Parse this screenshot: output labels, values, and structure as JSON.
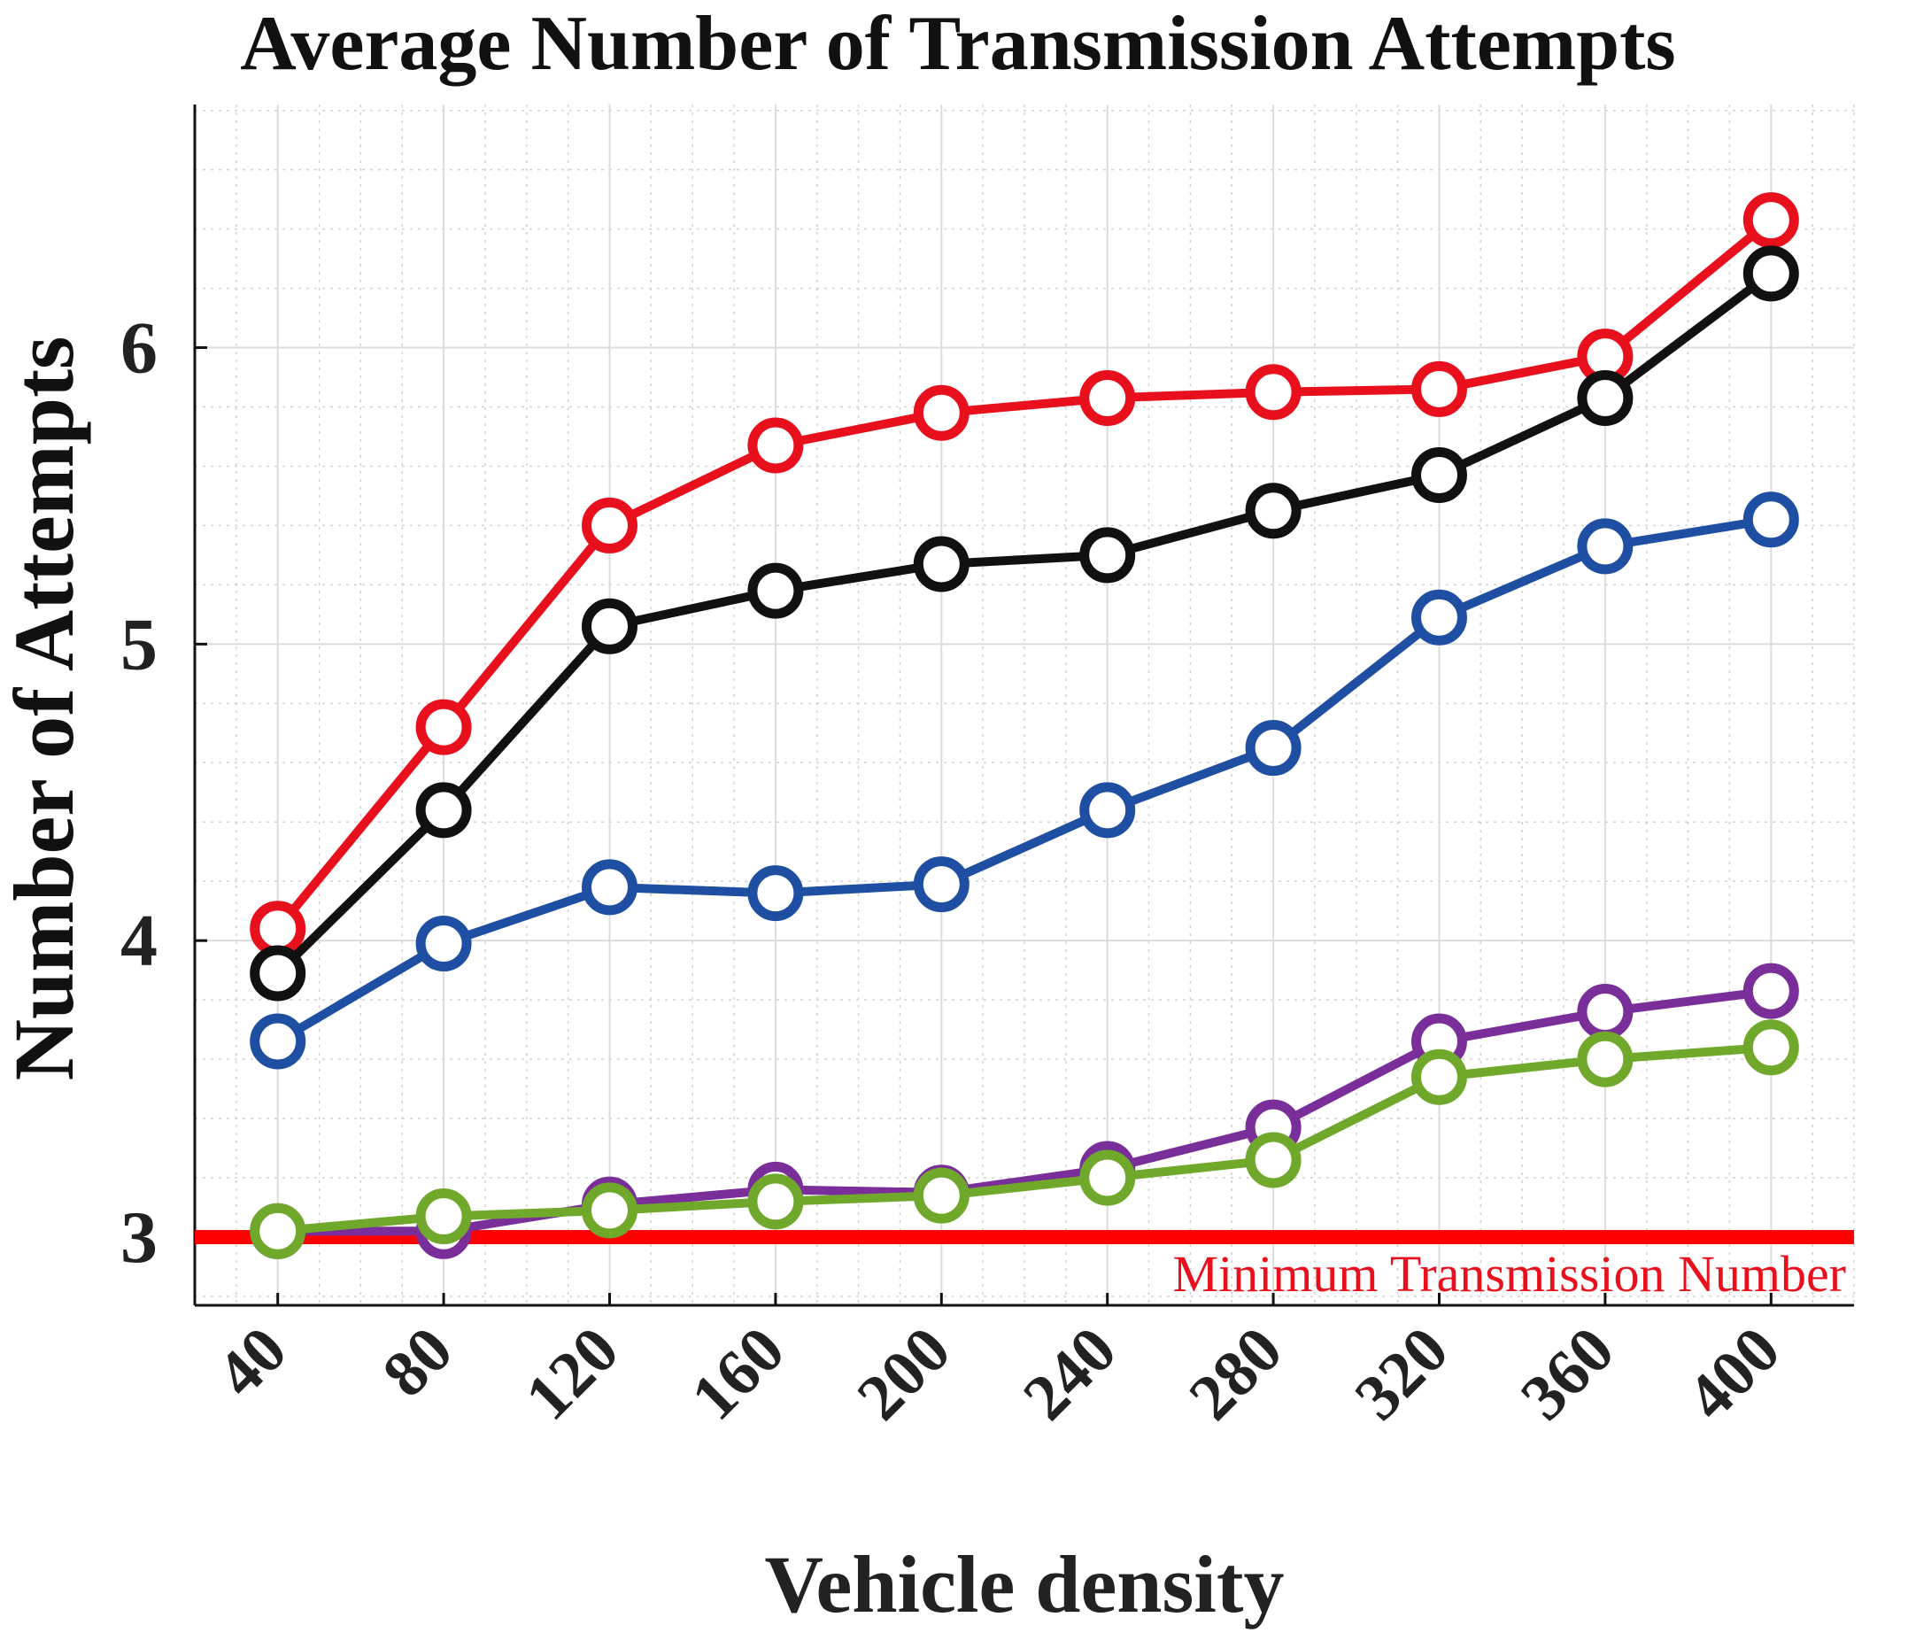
{
  "chart_data": {
    "type": "line",
    "title": "Average Number of Transmission Attempts",
    "xlabel": "Vehicle density",
    "ylabel": "Number of Attempts",
    "x": [
      40,
      80,
      120,
      160,
      200,
      240,
      280,
      320,
      360,
      400
    ],
    "xticks": [
      "40",
      "80",
      "120",
      "160",
      "200",
      "240",
      "280",
      "320",
      "360",
      "400"
    ],
    "yticks": [
      "3",
      "4",
      "5",
      "6"
    ],
    "xlim": [
      20,
      420
    ],
    "ylim": [
      2.77,
      6.82
    ],
    "grid": true,
    "minor_grid": true,
    "legend": "none",
    "series": [
      {
        "color": "#e8101c",
        "values": [
          4.04,
          4.72,
          5.4,
          5.67,
          5.78,
          5.83,
          5.85,
          5.86,
          5.97,
          6.43
        ]
      },
      {
        "color": "#111111",
        "values": [
          3.89,
          4.44,
          5.06,
          5.18,
          5.27,
          5.3,
          5.45,
          5.57,
          5.83,
          6.25
        ]
      },
      {
        "color": "#1f4fa3",
        "values": [
          3.66,
          3.99,
          4.18,
          4.16,
          4.19,
          4.44,
          4.65,
          5.09,
          5.33,
          5.42
        ]
      },
      {
        "color": "#7a2e9a",
        "values": [
          3.02,
          3.02,
          3.11,
          3.16,
          3.15,
          3.23,
          3.37,
          3.66,
          3.76,
          3.83
        ]
      },
      {
        "color": "#6fa82a",
        "values": [
          3.02,
          3.07,
          3.09,
          3.12,
          3.14,
          3.2,
          3.26,
          3.54,
          3.6,
          3.64
        ]
      }
    ],
    "reference_line": {
      "y": 3.0,
      "color": "#ff0000",
      "label": "Minimum Transmission Number"
    }
  }
}
